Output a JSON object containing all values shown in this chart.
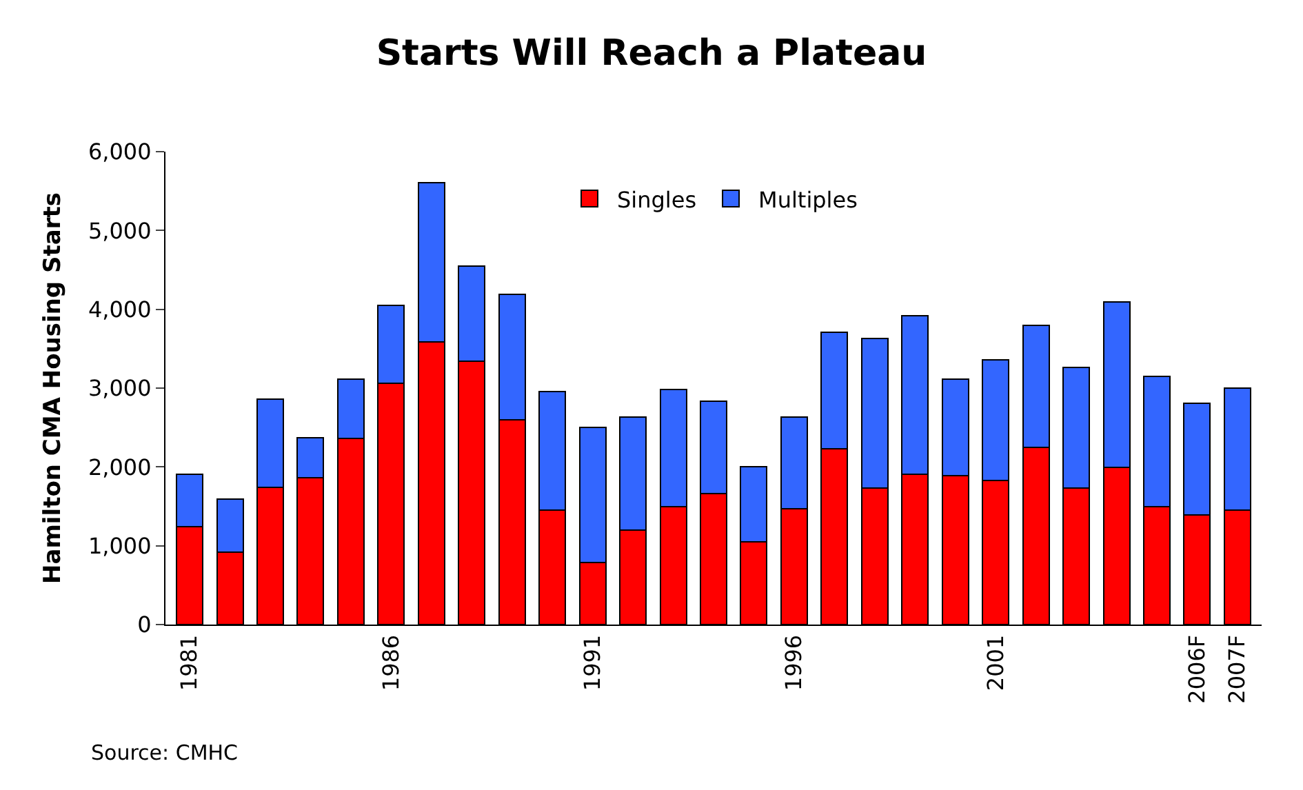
{
  "chart_data": {
    "type": "bar",
    "stacked": true,
    "title": "Starts Will Reach a Plateau",
    "ylabel": "Hamilton CMA Housing Starts",
    "categories": [
      "1981",
      null,
      null,
      null,
      null,
      "1986",
      null,
      null,
      null,
      null,
      "1991",
      null,
      null,
      null,
      null,
      "1996",
      null,
      null,
      null,
      null,
      "2001",
      null,
      null,
      null,
      null,
      "2006F",
      "2007F"
    ],
    "series": [
      {
        "name": "Singles",
        "color": "#ff0000",
        "values": [
          1240,
          920,
          1740,
          1860,
          2360,
          3060,
          3590,
          3340,
          2600,
          1450,
          790,
          1200,
          1500,
          1660,
          1050,
          1470,
          2230,
          1730,
          1910,
          1890,
          1830,
          2250,
          1730,
          1990,
          1500,
          1390,
          1450
        ]
      },
      {
        "name": "Multiples",
        "color": "#3366ff",
        "values": [
          670,
          670,
          1120,
          510,
          750,
          990,
          2020,
          1210,
          1590,
          1510,
          1710,
          1430,
          1480,
          1170,
          950,
          1160,
          1480,
          1900,
          2010,
          1220,
          1530,
          1550,
          1530,
          2100,
          1650,
          1420,
          1550
        ]
      }
    ],
    "ylim": [
      0,
      6000
    ],
    "yticks": [
      {
        "value": 0,
        "label": "0"
      },
      {
        "value": 1000,
        "label": "1,000"
      },
      {
        "value": 2000,
        "label": "2,000"
      },
      {
        "value": 3000,
        "label": "3,000"
      },
      {
        "value": 4000,
        "label": "4,000"
      },
      {
        "value": 5000,
        "label": "5,000"
      },
      {
        "value": 6000,
        "label": "6,000"
      }
    ],
    "legend": "top",
    "annotations": [
      "Source: CMHC"
    ]
  }
}
